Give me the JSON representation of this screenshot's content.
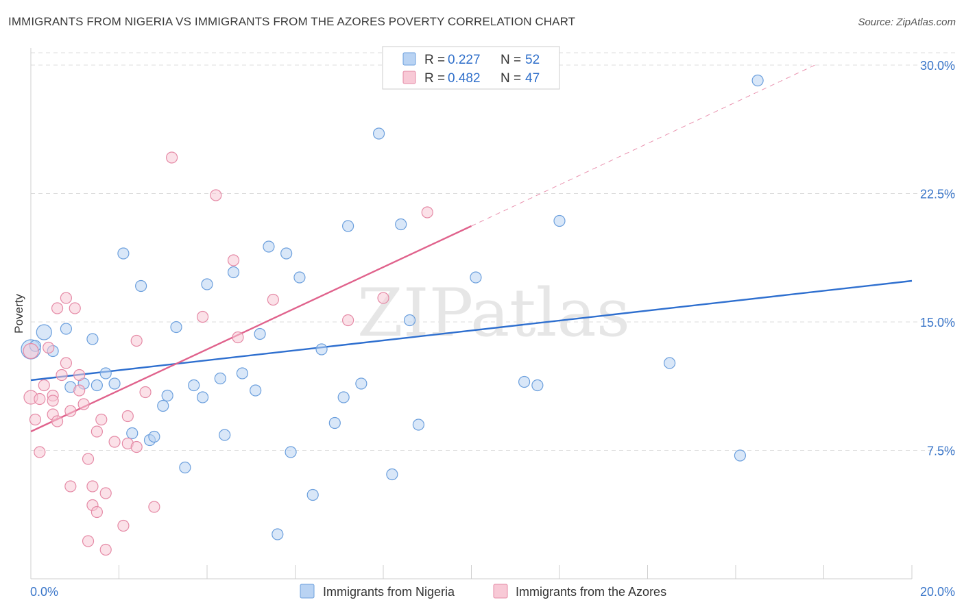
{
  "header": {
    "title": "IMMIGRANTS FROM NIGERIA VS IMMIGRANTS FROM THE AZORES POVERTY CORRELATION CHART",
    "source": "Source: ZipAtlas.com"
  },
  "watermark": "ZIPatlas",
  "colors": {
    "nigeria_fill": "#b9d3f3",
    "nigeria_stroke": "#6b9fdd",
    "nigeria_line": "#2e6fcf",
    "azores_fill": "#f8c9d6",
    "azores_stroke": "#e58aa6",
    "azores_line": "#e0628c",
    "grid": "#dddddd",
    "axis_text": "#3a76c9"
  },
  "chart_data": {
    "type": "scatter",
    "title": "IMMIGRANTS FROM NIGERIA VS IMMIGRANTS FROM THE AZORES POVERTY CORRELATION CHART",
    "xlabel": "",
    "ylabel": "Poverty",
    "xlim": [
      0,
      20
    ],
    "ylim": [
      0,
      31
    ],
    "x_tick_labels": [
      "0.0%",
      "20.0%"
    ],
    "y_ticks": [
      7.5,
      15.0,
      22.5,
      30.0
    ],
    "y_tick_labels": [
      "7.5%",
      "15.0%",
      "22.5%",
      "30.0%"
    ],
    "grid": true,
    "legend": {
      "placement": "top-center",
      "entries": [
        {
          "r_label": "R =",
          "r_value": "0.227",
          "n_label": "N =",
          "n_value": "52"
        },
        {
          "r_label": "R =",
          "r_value": "0.482",
          "n_label": "N =",
          "n_value": "47"
        }
      ]
    },
    "series": [
      {
        "name": "Immigrants from Nigeria",
        "points": [
          [
            0.0,
            13.4,
            14
          ],
          [
            0.3,
            14.4,
            11
          ],
          [
            0.5,
            13.3,
            8
          ],
          [
            0.8,
            14.6,
            8
          ],
          [
            0.9,
            11.2,
            8
          ],
          [
            1.2,
            11.4,
            8
          ],
          [
            1.4,
            14.0,
            8
          ],
          [
            1.5,
            11.3,
            8
          ],
          [
            1.7,
            12.0,
            8
          ],
          [
            1.9,
            11.4,
            8
          ],
          [
            2.1,
            19.0,
            8
          ],
          [
            2.3,
            8.5,
            8
          ],
          [
            2.5,
            17.1,
            8
          ],
          [
            2.7,
            8.1,
            8
          ],
          [
            2.8,
            8.3,
            8
          ],
          [
            3.0,
            10.1,
            8
          ],
          [
            3.1,
            10.7,
            8
          ],
          [
            3.3,
            14.7,
            8
          ],
          [
            3.5,
            6.5,
            8
          ],
          [
            3.7,
            11.3,
            8
          ],
          [
            3.9,
            10.6,
            8
          ],
          [
            4.0,
            17.2,
            8
          ],
          [
            4.3,
            11.7,
            8
          ],
          [
            4.4,
            8.4,
            8
          ],
          [
            4.6,
            17.9,
            8
          ],
          [
            4.8,
            12.0,
            8
          ],
          [
            5.1,
            11.0,
            8
          ],
          [
            5.2,
            14.3,
            8
          ],
          [
            5.4,
            19.4,
            8
          ],
          [
            5.6,
            2.6,
            8
          ],
          [
            5.8,
            19.0,
            8
          ],
          [
            5.9,
            7.4,
            8
          ],
          [
            6.1,
            17.6,
            8
          ],
          [
            6.4,
            4.9,
            8
          ],
          [
            6.6,
            13.4,
            8
          ],
          [
            6.9,
            9.1,
            8
          ],
          [
            7.1,
            10.6,
            8
          ],
          [
            7.2,
            20.6,
            8
          ],
          [
            7.5,
            11.4,
            8
          ],
          [
            7.9,
            26.0,
            8
          ],
          [
            8.2,
            6.1,
            8
          ],
          [
            8.4,
            20.7,
            8
          ],
          [
            8.6,
            15.1,
            8
          ],
          [
            8.8,
            9.0,
            8
          ],
          [
            10.1,
            17.6,
            8
          ],
          [
            11.2,
            11.5,
            8
          ],
          [
            11.5,
            11.3,
            8
          ],
          [
            12.0,
            20.9,
            8
          ],
          [
            14.5,
            12.6,
            8
          ],
          [
            16.1,
            7.2,
            8
          ],
          [
            16.5,
            29.1,
            8
          ],
          [
            0.1,
            13.6,
            8
          ]
        ]
      },
      {
        "name": "Immigrants from the Azores",
        "points": [
          [
            0.0,
            13.3,
            11
          ],
          [
            0.0,
            10.6,
            10
          ],
          [
            0.1,
            9.3,
            8
          ],
          [
            0.2,
            10.5,
            8
          ],
          [
            0.2,
            7.4,
            8
          ],
          [
            0.3,
            11.3,
            8
          ],
          [
            0.4,
            13.5,
            8
          ],
          [
            0.5,
            10.7,
            8
          ],
          [
            0.5,
            9.6,
            8
          ],
          [
            0.5,
            10.4,
            8
          ],
          [
            0.6,
            15.8,
            8
          ],
          [
            0.6,
            9.2,
            8
          ],
          [
            0.7,
            11.9,
            8
          ],
          [
            0.8,
            16.4,
            8
          ],
          [
            0.8,
            12.6,
            8
          ],
          [
            0.9,
            9.8,
            8
          ],
          [
            0.9,
            5.4,
            8
          ],
          [
            1.0,
            15.8,
            8
          ],
          [
            1.1,
            11.9,
            8
          ],
          [
            1.1,
            11.0,
            8
          ],
          [
            1.2,
            10.2,
            8
          ],
          [
            1.3,
            2.2,
            8
          ],
          [
            1.3,
            7.0,
            8
          ],
          [
            1.4,
            5.4,
            8
          ],
          [
            1.4,
            4.3,
            8
          ],
          [
            1.5,
            3.9,
            8
          ],
          [
            1.5,
            8.6,
            8
          ],
          [
            1.6,
            9.3,
            8
          ],
          [
            1.7,
            1.7,
            8
          ],
          [
            1.7,
            5.0,
            8
          ],
          [
            1.9,
            8.0,
            8
          ],
          [
            2.1,
            3.1,
            8
          ],
          [
            2.2,
            9.5,
            8
          ],
          [
            2.2,
            7.9,
            8
          ],
          [
            2.4,
            13.9,
            8
          ],
          [
            2.4,
            7.7,
            8
          ],
          [
            2.6,
            10.9,
            8
          ],
          [
            2.8,
            4.2,
            8
          ],
          [
            3.2,
            24.6,
            8
          ],
          [
            3.9,
            15.3,
            8
          ],
          [
            4.2,
            22.4,
            8
          ],
          [
            4.6,
            18.6,
            8
          ],
          [
            4.7,
            14.1,
            8
          ],
          [
            5.5,
            16.3,
            8
          ],
          [
            7.2,
            15.1,
            8
          ],
          [
            8.0,
            16.4,
            8
          ],
          [
            9.0,
            21.4,
            8
          ]
        ]
      }
    ],
    "trendlines": [
      {
        "series": "Immigrants from Nigeria",
        "x_start": 0.0,
        "y_start": 11.6,
        "x_end": 20.0,
        "y_end": 17.4,
        "style": "solid"
      },
      {
        "series": "Immigrants from the Azores",
        "x_start": 0.0,
        "y_start": 8.6,
        "x_end": 10.0,
        "y_end": 20.6,
        "style": "solid"
      },
      {
        "series": "Immigrants from the Azores",
        "x_start": 10.0,
        "y_start": 20.6,
        "x_end": 17.8,
        "y_end": 30.0,
        "style": "dashed"
      }
    ]
  }
}
